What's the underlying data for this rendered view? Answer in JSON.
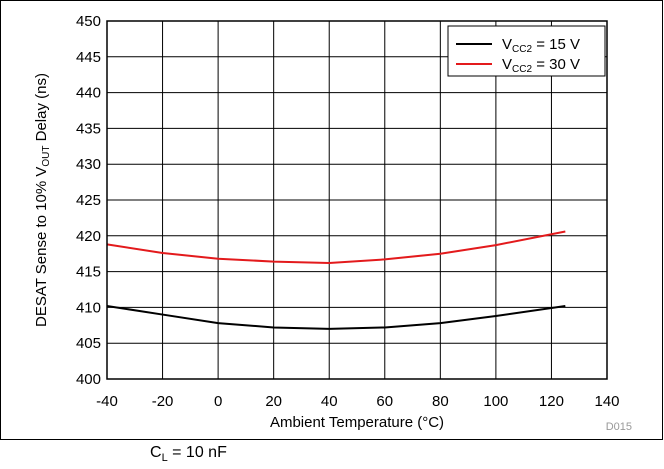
{
  "chart_data": {
    "type": "line",
    "xlabel": "Ambient Temperature (°C)",
    "ylabel_parts": [
      "DESAT Sense to 10% V",
      "OUT",
      " Delay (ns)"
    ],
    "xlim": [
      -40,
      140
    ],
    "ylim": [
      400,
      450
    ],
    "xticks": [
      -40,
      -20,
      0,
      20,
      40,
      60,
      80,
      100,
      120,
      140
    ],
    "yticks": [
      400,
      405,
      410,
      415,
      420,
      425,
      430,
      435,
      440,
      445,
      450
    ],
    "grid": true,
    "legend_position": "top-right",
    "series": [
      {
        "name_parts": [
          "V",
          "CC2",
          " = 15 V"
        ],
        "color": "#000000",
        "x": [
          -40,
          -20,
          0,
          20,
          40,
          60,
          80,
          100,
          125
        ],
        "y": [
          410.2,
          409.0,
          407.8,
          407.2,
          407.0,
          407.2,
          407.8,
          408.8,
          410.2
        ]
      },
      {
        "name_parts": [
          "V",
          "CC2",
          " = 30 V"
        ],
        "color": "#e31a1c",
        "x": [
          -40,
          -20,
          0,
          20,
          40,
          60,
          80,
          100,
          125
        ],
        "y": [
          418.8,
          417.6,
          416.8,
          416.4,
          416.2,
          416.7,
          417.5,
          418.7,
          420.6
        ]
      }
    ]
  },
  "figure_code": "D015",
  "condition_parts": [
    "C",
    "L",
    " = 10 nF"
  ]
}
